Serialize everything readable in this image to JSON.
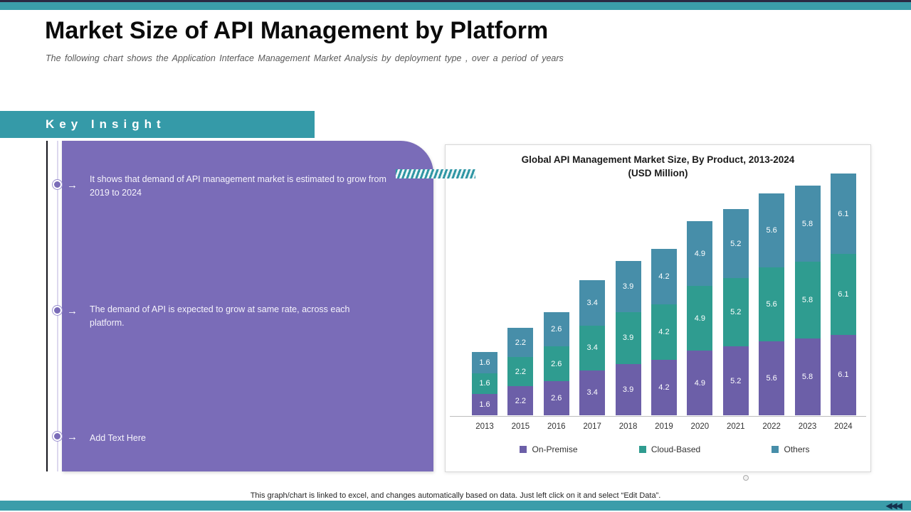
{
  "slide": {
    "title": "Market Size of API Management by Platform",
    "subtitle": "The following chart shows the Application Interface Management Market Analysis by deployment type , over a period of years",
    "footer_note": "This graph/chart is linked to excel, and changes automatically based on data. Just left click on it and select “Edit Data”.",
    "nav_arrows": "◀◀◀"
  },
  "key_insight": {
    "heading": "Key Insight",
    "bullets": [
      {
        "text": "It shows that demand of API management market is estimated to grow from 2019 to 2024"
      },
      {
        "text": "The demand of API is expected to grow at same rate, across each platform."
      },
      {
        "text": "Add Text Here"
      }
    ],
    "arrow_glyph": "→"
  },
  "chart_data": {
    "type": "bar",
    "stacked": true,
    "title": "Global API Management Market Size, By Product, 2013-2024",
    "title_line2": "(USD Million)",
    "categories": [
      "2013",
      "2015",
      "2016",
      "2017",
      "2018",
      "2019",
      "2020",
      "2021",
      "2022",
      "2023",
      "2024"
    ],
    "series": [
      {
        "name": "On-Premise",
        "color": "#6c5fa8",
        "values": [
          1.6,
          2.2,
          2.6,
          3.4,
          3.9,
          4.2,
          4.9,
          5.2,
          5.6,
          5.8,
          6.1
        ]
      },
      {
        "name": "Cloud-Based",
        "color": "#2f9c90",
        "values": [
          1.6,
          2.2,
          2.6,
          3.4,
          3.9,
          4.2,
          4.9,
          5.2,
          5.6,
          5.8,
          6.1
        ]
      },
      {
        "name": "Others",
        "color": "#478ea9",
        "values": [
          1.6,
          2.2,
          2.6,
          3.4,
          3.9,
          4.2,
          4.9,
          5.2,
          5.6,
          5.8,
          6.1
        ]
      }
    ],
    "ylim": [
      0,
      18.3
    ],
    "grid": false,
    "legend_position": "bottom",
    "data_labels": true
  },
  "colors": {
    "accent_teal": "#3b9daa",
    "banner_teal": "#359aa8",
    "panel_purple": "#7a6cb8",
    "arrow_navy": "#14304d"
  }
}
